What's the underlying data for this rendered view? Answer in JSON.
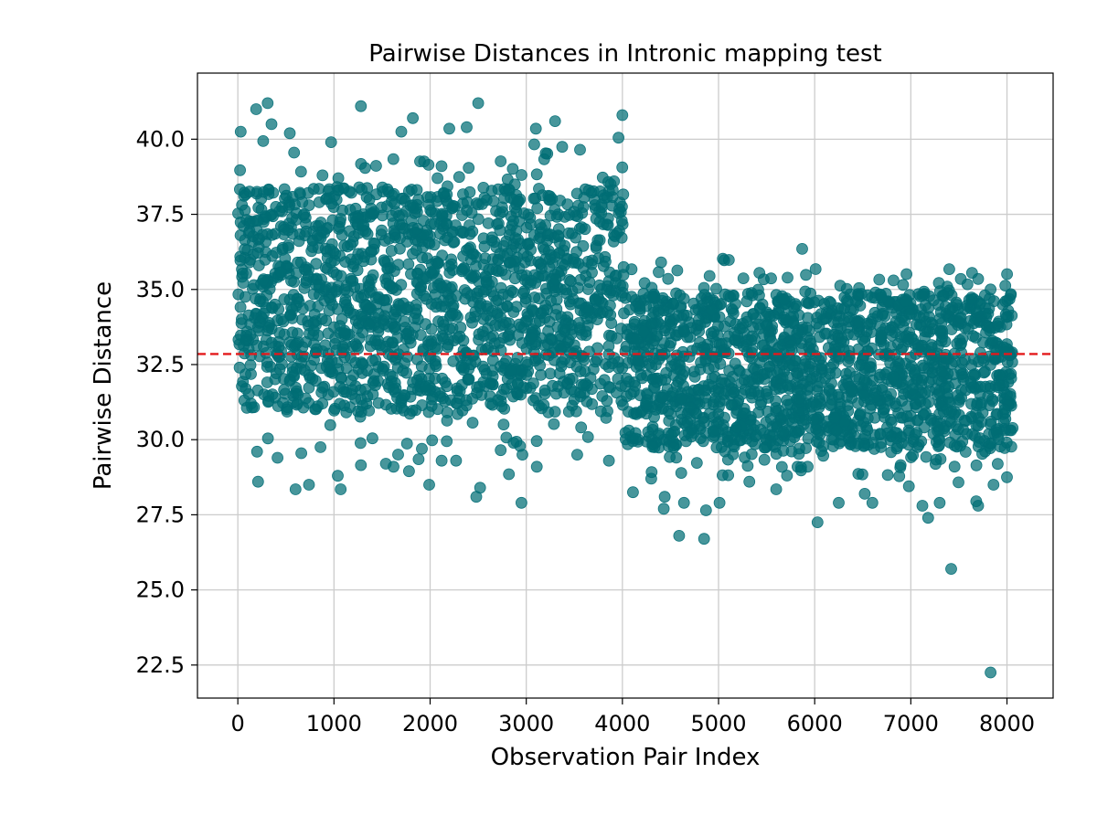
{
  "chart_data": {
    "type": "scatter",
    "title": "Pairwise Distances in Intronic mapping test",
    "xlabel": "Observation Pair Index",
    "ylabel": "Pairwise Distance",
    "xlim": [
      -420,
      8480
    ],
    "ylim": [
      21.4,
      42.2
    ],
    "xticks": [
      0,
      1000,
      2000,
      3000,
      4000,
      5000,
      6000,
      7000,
      8000
    ],
    "yticks": [
      22.5,
      25.0,
      27.5,
      30.0,
      32.5,
      35.0,
      37.5,
      40.0
    ],
    "grid": true,
    "point_color": "#006d75",
    "point_opacity": 0.72,
    "reference_line": {
      "y": 32.85,
      "color": "#e31a1c",
      "style": "dashed"
    },
    "series": [
      {
        "segment": "x 0–4030",
        "x_range": [
          0,
          4030
        ],
        "core_y_range": [
          30.9,
          38.4
        ],
        "count_estimate": 4030,
        "outliers": [
          [
            30,
            40.25
          ],
          [
            190,
            41.0
          ],
          [
            310,
            41.2
          ],
          [
            350,
            40.5
          ],
          [
            540,
            40.2
          ],
          [
            1280,
            41.1
          ],
          [
            1700,
            40.25
          ],
          [
            1820,
            40.7
          ],
          [
            2200,
            40.35
          ],
          [
            2380,
            40.4
          ],
          [
            2500,
            41.2
          ],
          [
            3100,
            40.35
          ],
          [
            3300,
            40.6
          ],
          [
            4000,
            40.8
          ],
          [
            3960,
            40.05
          ],
          [
            970,
            39.9
          ],
          [
            200,
            29.6
          ],
          [
            210,
            28.6
          ],
          [
            600,
            28.35
          ],
          [
            660,
            29.55
          ],
          [
            740,
            28.5
          ],
          [
            860,
            29.75
          ],
          [
            1040,
            28.8
          ],
          [
            1070,
            28.35
          ],
          [
            1280,
            29.15
          ],
          [
            1540,
            29.2
          ],
          [
            1620,
            29.1
          ],
          [
            1780,
            28.95
          ],
          [
            1880,
            29.35
          ],
          [
            1990,
            28.5
          ],
          [
            2120,
            29.3
          ],
          [
            2270,
            29.3
          ],
          [
            2480,
            28.1
          ],
          [
            2520,
            28.4
          ],
          [
            2820,
            28.85
          ],
          [
            2950,
            27.9
          ],
          [
            2960,
            29.5
          ],
          [
            3110,
            29.1
          ],
          [
            3530,
            29.5
          ],
          [
            3860,
            29.3
          ]
        ]
      },
      {
        "segment": "x 4030–8060",
        "x_range": [
          4030,
          8060
        ],
        "core_y_range": [
          29.7,
          34.9
        ],
        "count_estimate": 4030,
        "outliers": [
          [
            5870,
            36.35
          ],
          [
            6820,
            35.3
          ],
          [
            7520,
            35.35
          ],
          [
            7700,
            35.35
          ],
          [
            7830,
            35.0
          ],
          [
            4110,
            28.25
          ],
          [
            4300,
            28.7
          ],
          [
            4440,
            28.1
          ],
          [
            4430,
            27.7
          ],
          [
            4590,
            26.8
          ],
          [
            4640,
            27.9
          ],
          [
            4850,
            26.7
          ],
          [
            4870,
            27.65
          ],
          [
            5010,
            27.9
          ],
          [
            5320,
            28.6
          ],
          [
            5600,
            28.35
          ],
          [
            6030,
            27.25
          ],
          [
            6250,
            27.9
          ],
          [
            6520,
            28.2
          ],
          [
            6600,
            27.9
          ],
          [
            6980,
            28.45
          ],
          [
            7120,
            27.8
          ],
          [
            7180,
            27.4
          ],
          [
            7300,
            27.9
          ],
          [
            7420,
            25.7
          ],
          [
            7680,
            27.95
          ],
          [
            7700,
            27.8
          ],
          [
            7830,
            22.25
          ],
          [
            7860,
            28.5
          ],
          [
            8000,
            28.75
          ]
        ]
      }
    ]
  }
}
